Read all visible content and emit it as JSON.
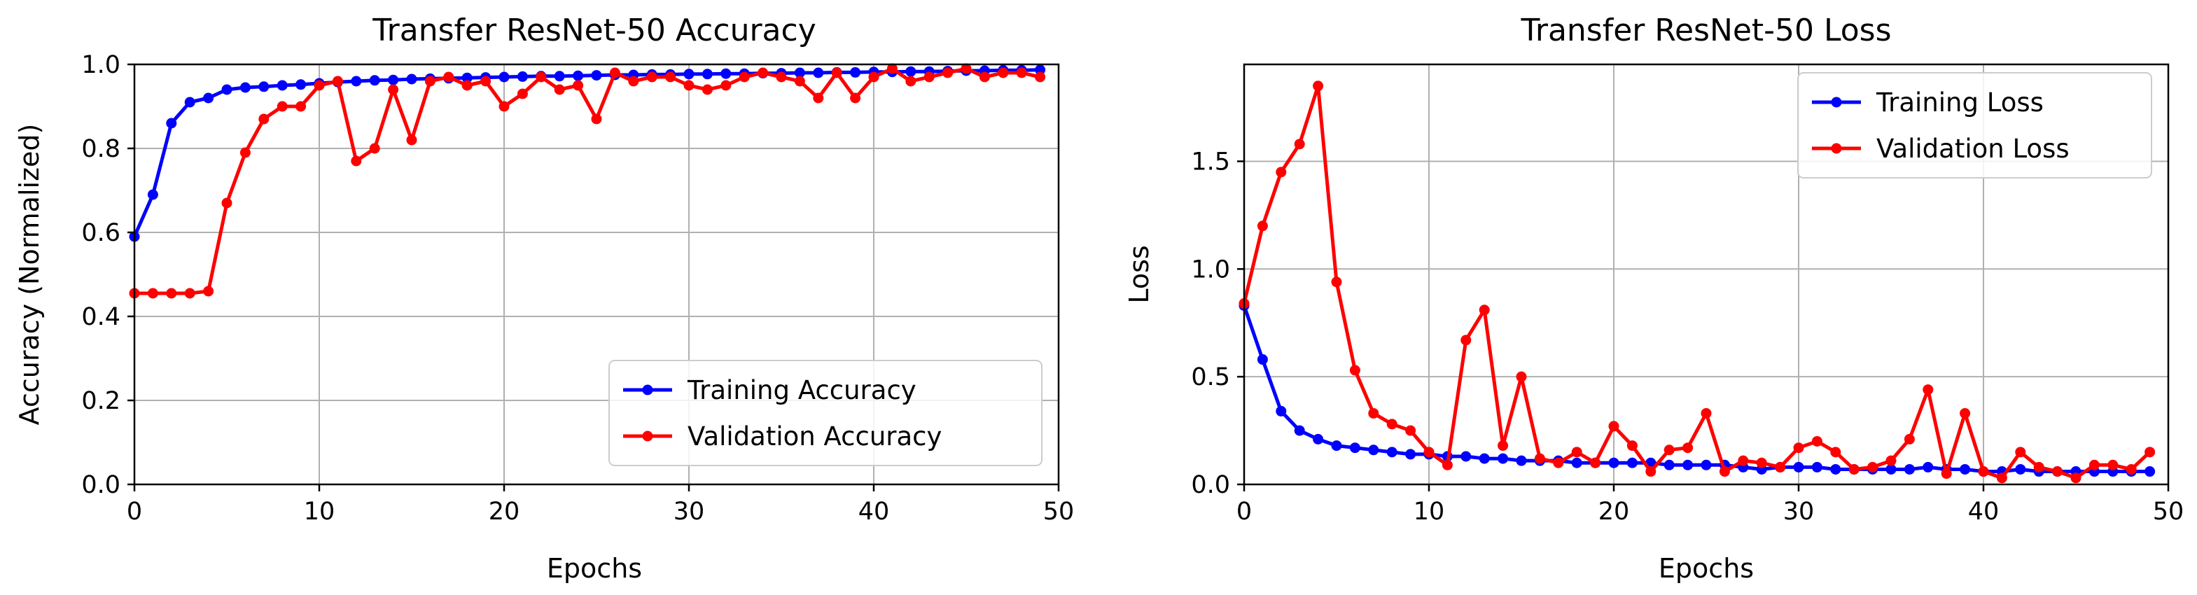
{
  "chart_data": [
    {
      "type": "line",
      "title": "Transfer ResNet-50 Accuracy",
      "xlabel": "Epochs",
      "ylabel": "Accuracy (Normalized)",
      "xlim": [
        0,
        50
      ],
      "ylim": [
        0,
        1.0
      ],
      "xticks": [
        "0",
        "10",
        "20",
        "30",
        "40",
        "50"
      ],
      "yticks": [
        "0.0",
        "0.2",
        "0.4",
        "0.6",
        "0.8",
        "1.0"
      ],
      "grid": true,
      "legend_position": "lower-right",
      "x": [
        0,
        1,
        2,
        3,
        4,
        5,
        6,
        7,
        8,
        9,
        10,
        11,
        12,
        13,
        14,
        15,
        16,
        17,
        18,
        19,
        20,
        21,
        22,
        23,
        24,
        25,
        26,
        27,
        28,
        29,
        30,
        31,
        32,
        33,
        34,
        35,
        36,
        37,
        38,
        39,
        40,
        41,
        42,
        43,
        44,
        45,
        46,
        47,
        48,
        49
      ],
      "series": [
        {
          "name": "Training Accuracy",
          "color": "#0000ff",
          "values": [
            0.59,
            0.69,
            0.86,
            0.91,
            0.92,
            0.94,
            0.945,
            0.947,
            0.95,
            0.952,
            0.955,
            0.958,
            0.96,
            0.962,
            0.963,
            0.965,
            0.966,
            0.967,
            0.968,
            0.969,
            0.97,
            0.971,
            0.972,
            0.972,
            0.973,
            0.974,
            0.975,
            0.975,
            0.976,
            0.976,
            0.977,
            0.977,
            0.978,
            0.978,
            0.979,
            0.979,
            0.98,
            0.98,
            0.981,
            0.981,
            0.982,
            0.982,
            0.983,
            0.983,
            0.984,
            0.985,
            0.985,
            0.986,
            0.986,
            0.987
          ]
        },
        {
          "name": "Validation Accuracy",
          "color": "#ff0000",
          "values": [
            0.455,
            0.455,
            0.455,
            0.455,
            0.46,
            0.67,
            0.79,
            0.87,
            0.9,
            0.9,
            0.95,
            0.96,
            0.77,
            0.8,
            0.94,
            0.82,
            0.96,
            0.97,
            0.95,
            0.96,
            0.9,
            0.93,
            0.97,
            0.94,
            0.95,
            0.87,
            0.98,
            0.96,
            0.97,
            0.97,
            0.95,
            0.94,
            0.95,
            0.97,
            0.98,
            0.97,
            0.96,
            0.92,
            0.98,
            0.92,
            0.97,
            0.99,
            0.96,
            0.97,
            0.98,
            0.99,
            0.97,
            0.98,
            0.98,
            0.97
          ]
        }
      ]
    },
    {
      "type": "line",
      "title": "Transfer ResNet-50 Loss",
      "xlabel": "Epochs",
      "ylabel": "Loss",
      "xlim": [
        0,
        50
      ],
      "ylim": [
        0,
        1.95
      ],
      "xticks": [
        "0",
        "10",
        "20",
        "30",
        "40",
        "50"
      ],
      "yticks": [
        "0.0",
        "0.5",
        "1.0",
        "1.5"
      ],
      "grid": true,
      "legend_position": "top-right",
      "x": [
        0,
        1,
        2,
        3,
        4,
        5,
        6,
        7,
        8,
        9,
        10,
        11,
        12,
        13,
        14,
        15,
        16,
        17,
        18,
        19,
        20,
        21,
        22,
        23,
        24,
        25,
        26,
        27,
        28,
        29,
        30,
        31,
        32,
        33,
        34,
        35,
        36,
        37,
        38,
        39,
        40,
        41,
        42,
        43,
        44,
        45,
        46,
        47,
        48,
        49
      ],
      "series": [
        {
          "name": "Training Loss",
          "color": "#0000ff",
          "values": [
            0.83,
            0.58,
            0.34,
            0.25,
            0.21,
            0.18,
            0.17,
            0.16,
            0.15,
            0.14,
            0.14,
            0.13,
            0.13,
            0.12,
            0.12,
            0.11,
            0.11,
            0.11,
            0.1,
            0.1,
            0.1,
            0.1,
            0.1,
            0.09,
            0.09,
            0.09,
            0.09,
            0.08,
            0.07,
            0.08,
            0.08,
            0.08,
            0.07,
            0.07,
            0.07,
            0.07,
            0.07,
            0.08,
            0.07,
            0.07,
            0.06,
            0.06,
            0.07,
            0.06,
            0.06,
            0.06,
            0.06,
            0.06,
            0.06,
            0.06
          ]
        },
        {
          "name": "Validation Loss",
          "color": "#ff0000",
          "values": [
            0.84,
            1.2,
            1.45,
            1.58,
            1.85,
            0.94,
            0.53,
            0.33,
            0.28,
            0.25,
            0.15,
            0.09,
            0.67,
            0.81,
            0.18,
            0.5,
            0.12,
            0.1,
            0.15,
            0.1,
            0.27,
            0.18,
            0.06,
            0.16,
            0.17,
            0.33,
            0.06,
            0.11,
            0.1,
            0.08,
            0.17,
            0.2,
            0.15,
            0.07,
            0.08,
            0.11,
            0.21,
            0.44,
            0.05,
            0.33,
            0.06,
            0.03,
            0.15,
            0.08,
            0.06,
            0.03,
            0.09,
            0.09,
            0.07,
            0.15
          ]
        }
      ]
    }
  ]
}
